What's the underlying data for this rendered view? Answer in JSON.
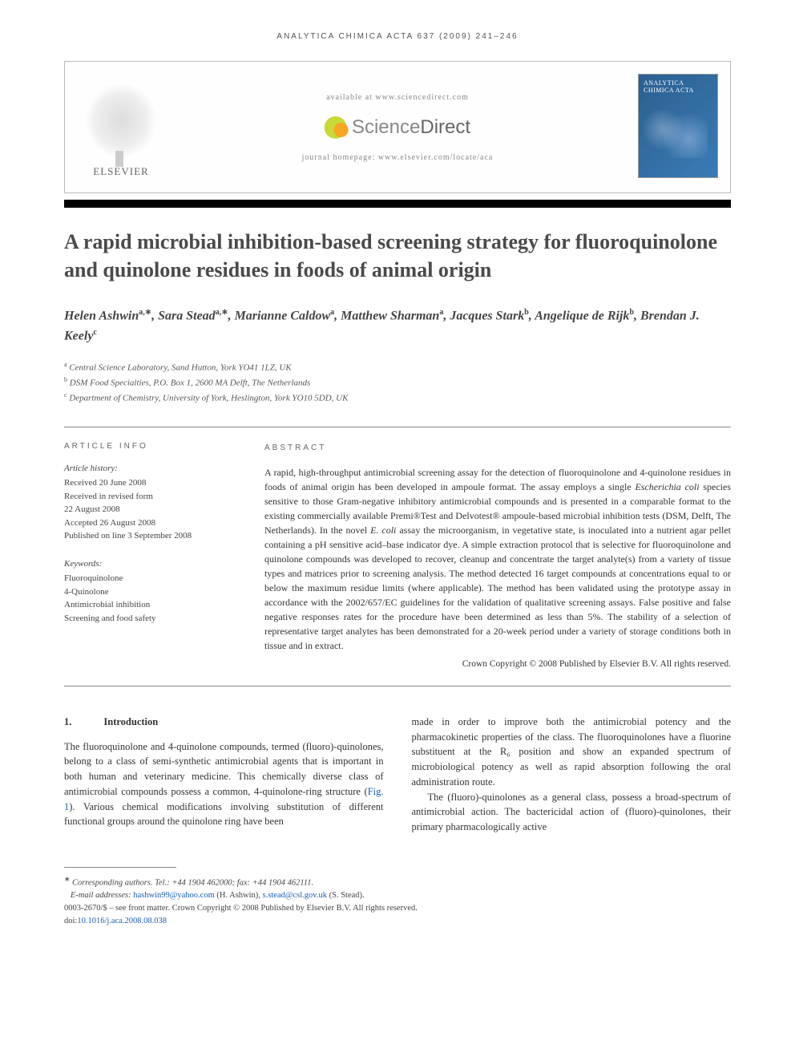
{
  "running_head": "ANALYTICA CHIMICA ACTA 637 (2009) 241–246",
  "header": {
    "elsevier": "ELSEVIER",
    "available": "available at www.sciencedirect.com",
    "sd_name_light": "Science",
    "sd_name_bold": "Direct",
    "homepage": "journal homepage: www.elsevier.com/locate/aca",
    "cover_title": "ANALYTICA CHIMICA ACTA"
  },
  "title": "A rapid microbial inhibition-based screening strategy for fluoroquinolone and quinolone residues in foods of animal origin",
  "authors_html": "Helen Ashwin<sup>a,∗</sup>, Sara Stead<sup>a,∗</sup>, Marianne Caldow<sup>a</sup>, Matthew Sharman<sup>a</sup>, Jacques Stark<sup>b</sup>, Angelique de Rijk<sup>b</sup>, Brendan J. Keely<sup>c</sup>",
  "affiliations": {
    "a": "Central Science Laboratory, Sand Hutton, York YO41 1LZ, UK",
    "b": "DSM Food Specialties, P.O. Box 1, 2600 MA Delft, The Netherlands",
    "c": "Department of Chemistry, University of York, Heslington, York YO10 5DD, UK"
  },
  "info": {
    "label": "ARTICLE INFO",
    "history_head": "Article history:",
    "history": [
      "Received 20 June 2008",
      "Received in revised form",
      "22 August 2008",
      "Accepted 26 August 2008",
      "Published on line 3 September 2008"
    ],
    "keywords_head": "Keywords:",
    "keywords": [
      "Fluoroquinolone",
      "4-Quinolone",
      "Antimicrobial inhibition",
      "Screening and food safety"
    ]
  },
  "abstract": {
    "label": "ABSTRACT",
    "text": "A rapid, high-throughput antimicrobial screening assay for the detection of fluoroquinolone and 4-quinolone residues in foods of animal origin has been developed in ampoule format. The assay employs a single Escherichia coli species sensitive to those Gram-negative inhibitory antimicrobial compounds and is presented in a comparable format to the existing commercially available Premi®Test and Delvotest® ampoule-based microbial inhibition tests (DSM, Delft, The Netherlands). In the novel E. coli assay the microorganism, in vegetative state, is inoculated into a nutrient agar pellet containing a pH sensitive acid–base indicator dye. A simple extraction protocol that is selective for fluoroquinolone and quinolone compounds was developed to recover, cleanup and concentrate the target analyte(s) from a variety of tissue types and matrices prior to screening analysis. The method detected 16 target compounds at concentrations equal to or below the maximum residue limits (where applicable). The method has been validated using the prototype assay in accordance with the 2002/657/EC guidelines for the validation of qualitative screening assays. False positive and false negative responses rates for the procedure have been determined as less than 5%. The stability of a selection of representative target analytes has been demonstrated for a 20-week period under a variety of storage conditions both in tissue and in extract.",
    "copyright": "Crown Copyright © 2008 Published by Elsevier B.V. All rights reserved."
  },
  "body": {
    "heading_num": "1.",
    "heading_text": "Introduction",
    "p1": "The fluoroquinolone and 4-quinolone compounds, termed (fluoro)-quinolones, belong to a class of semi-synthetic antimicrobial agents that is important in both human and veterinary medicine. This chemically diverse class of antimicrobial compounds possess a common, 4-quinolone-ring structure (",
    "p1_link": "Fig. 1",
    "p1_tail": "). Various chemical modifications involving substitution of different functional groups around the quinolone ring have been",
    "p2": "made in order to improve both the antimicrobial potency and the pharmacokinetic properties of the class. The fluoroquinolones have a fluorine substituent at the R₆ position and show an expanded spectrum of microbiological potency as well as rapid absorption following the oral administration route.",
    "p3": "The (fluoro)-quinolones as a general class, possess a broad-spectrum of antimicrobial action. The bactericidal action of (fluoro)-quinolones, their primary pharmacologically active"
  },
  "footnotes": {
    "corr": "Corresponding authors. Tel.: +44 1904 462000; fax: +44 1904 462111.",
    "email_label": "E-mail addresses:",
    "email1": "hashwin99@yahoo.com",
    "email1_who": "(H. Ashwin),",
    "email2": "s.stead@csl.gov.uk",
    "email2_who": "(S. Stead).",
    "issn": "0003-2670/$ – see front matter. Crown Copyright © 2008 Published by Elsevier B.V. All rights reserved.",
    "doi_label": "doi:",
    "doi": "10.1016/j.aca.2008.08.038"
  },
  "colors": {
    "link": "#1a5fb4",
    "title": "#4a4a4a",
    "cover_bg": "#2b5f8f"
  }
}
